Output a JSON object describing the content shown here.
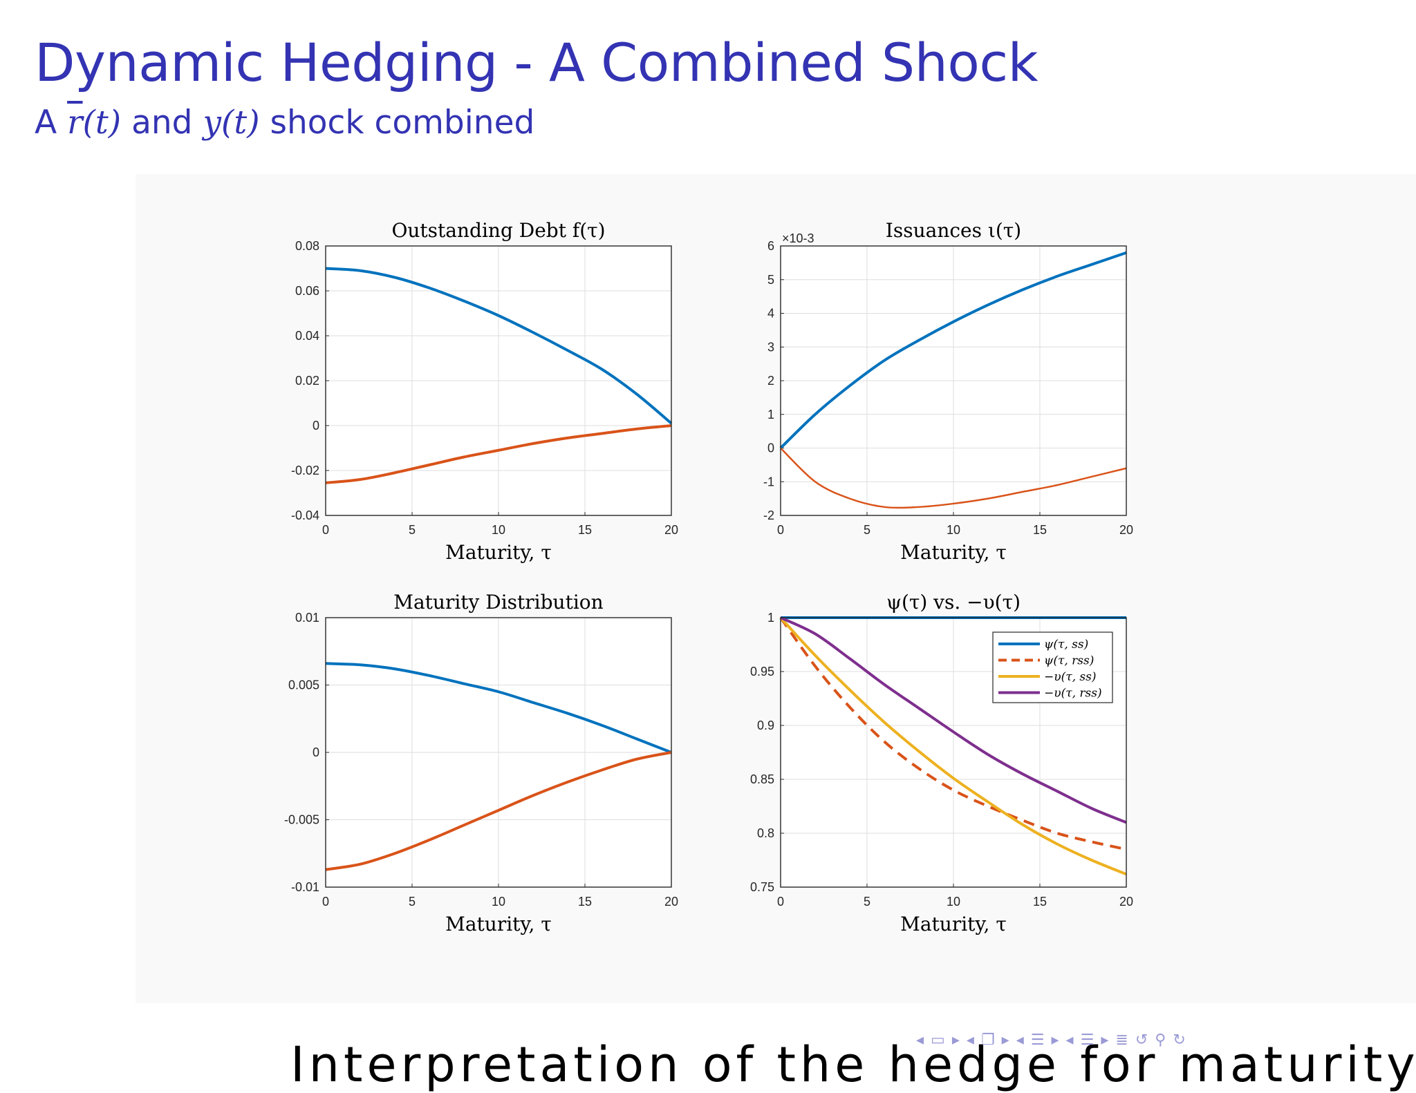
{
  "slide": {
    "title": "Dynamic Hedging - A Combined Shock",
    "subtitle_prefix": "A ",
    "subtitle_r": "r",
    "subtitle_r_arg": "(t)",
    "subtitle_mid": " and ",
    "subtitle_y": "y(t)",
    "subtitle_suffix": " shock combined",
    "bottom_text": "Interpretation of the hedge  for maturity",
    "colors": {
      "title": "#3333b3",
      "blue": "#0072BD",
      "orange": "#D95319",
      "yellow": "#EDB120",
      "purple": "#7E2F8E"
    }
  },
  "navigation": {
    "icons": [
      "nav-left-arrow",
      "nav-frame-icon",
      "nav-right-arrow",
      "nav-left-arrow",
      "nav-subsection-icon",
      "nav-right-arrow",
      "nav-left-arrow",
      "nav-section-icon",
      "nav-right-arrow",
      "nav-left-arrow",
      "nav-section-icon",
      "nav-right-arrow",
      "nav-align-icon",
      "nav-back-icon",
      "nav-search-icon",
      "nav-forward-icon"
    ]
  },
  "chart_data": [
    {
      "type": "line",
      "title": "Outstanding Debt f(τ)",
      "xlabel": "Maturity, τ",
      "ylabel": "",
      "xlim": [
        0,
        20
      ],
      "ylim": [
        -0.04,
        0.08
      ],
      "xticks": [
        "0",
        "5",
        "10",
        "15",
        "20"
      ],
      "yticks": [
        "-0.04",
        "-0.02",
        "0",
        "0.02",
        "0.04",
        "0.06",
        "0.08"
      ],
      "grid": true,
      "x": [
        0,
        2,
        4,
        6,
        8,
        10,
        12,
        14,
        16,
        18,
        20
      ],
      "series": [
        {
          "color": "#0072BD",
          "width": 4,
          "dash": "",
          "values": [
            0.07,
            0.069,
            0.066,
            0.0613,
            0.0555,
            0.049,
            0.0415,
            0.0335,
            0.025,
            0.014,
            0.001
          ]
        },
        {
          "color": "#D95319",
          "width": 4,
          "dash": "",
          "values": [
            -0.0255,
            -0.024,
            -0.021,
            -0.0175,
            -0.014,
            -0.011,
            -0.008,
            -0.0055,
            -0.0035,
            -0.0015,
            0.0
          ]
        }
      ]
    },
    {
      "type": "line",
      "title": "Issuances ι(τ)",
      "xlabel": "Maturity, τ",
      "ylabel": "",
      "xlim": [
        0,
        20
      ],
      "ylim": [
        -2,
        6
      ],
      "xticks": [
        "0",
        "5",
        "10",
        "15",
        "20"
      ],
      "yticks": [
        "-2",
        "-1",
        "0",
        "1",
        "2",
        "3",
        "4",
        "5",
        "6"
      ],
      "exponent": "×10-3",
      "grid": true,
      "x": [
        0,
        2,
        4,
        6,
        8,
        10,
        12,
        14,
        16,
        18,
        20
      ],
      "series": [
        {
          "color": "#0072BD",
          "width": 4,
          "dash": "",
          "values": [
            0.0,
            1.0,
            1.85,
            2.6,
            3.2,
            3.75,
            4.25,
            4.7,
            5.1,
            5.45,
            5.8
          ]
        },
        {
          "color": "#D95319",
          "width": 2.5,
          "dash": "",
          "values": [
            0.0,
            -1.0,
            -1.5,
            -1.75,
            -1.75,
            -1.65,
            -1.5,
            -1.3,
            -1.1,
            -0.85,
            -0.6
          ]
        }
      ]
    },
    {
      "type": "line",
      "title": "Maturity Distribution",
      "xlabel": "Maturity, τ",
      "ylabel": "",
      "xlim": [
        0,
        20
      ],
      "ylim": [
        -0.01,
        0.01
      ],
      "xticks": [
        "0",
        "5",
        "10",
        "15",
        "20"
      ],
      "yticks": [
        "-0.01",
        "-0.005",
        "0",
        "0.005",
        "0.01"
      ],
      "grid": true,
      "x": [
        0,
        2,
        4,
        6,
        8,
        10,
        12,
        14,
        16,
        18,
        20
      ],
      "series": [
        {
          "color": "#0072BD",
          "width": 4,
          "dash": "",
          "values": [
            0.0066,
            0.0065,
            0.0062,
            0.0057,
            0.0051,
            0.0045,
            0.0037,
            0.0029,
            0.002,
            0.001,
            0.0
          ]
        },
        {
          "color": "#D95319",
          "width": 4,
          "dash": "",
          "values": [
            -0.0087,
            -0.0083,
            -0.0075,
            -0.0065,
            -0.0054,
            -0.0043,
            -0.0032,
            -0.0022,
            -0.0013,
            -0.0005,
            0.0
          ]
        }
      ]
    },
    {
      "type": "line",
      "title": "ψ(τ) vs. −υ(τ)",
      "xlabel": "Maturity, τ",
      "ylabel": "",
      "xlim": [
        0,
        20
      ],
      "ylim": [
        0.75,
        1
      ],
      "xticks": [
        "0",
        "5",
        "10",
        "15",
        "20"
      ],
      "yticks": [
        "0.75",
        "0.8",
        "0.85",
        "0.9",
        "0.95",
        "1"
      ],
      "grid": true,
      "legend_position": "top-right",
      "x": [
        0,
        2,
        4,
        6,
        8,
        10,
        12,
        14,
        16,
        18,
        20
      ],
      "series": [
        {
          "name": "ψ(τ, ss)",
          "color": "#0072BD",
          "width": 4,
          "dash": "",
          "values": [
            1,
            1,
            1,
            1,
            1,
            1,
            1,
            1,
            1,
            1,
            1
          ]
        },
        {
          "name": "ψ(τ, rss)",
          "color": "#D95319",
          "width": 4,
          "dash": "16 10",
          "values": [
            1.0,
            0.955,
            0.917,
            0.885,
            0.86,
            0.84,
            0.825,
            0.812,
            0.8,
            0.792,
            0.785
          ]
        },
        {
          "name": "−υ(τ, ss)",
          "color": "#EDB120",
          "width": 4,
          "dash": "",
          "values": [
            1.0,
            0.965,
            0.933,
            0.903,
            0.876,
            0.851,
            0.829,
            0.808,
            0.79,
            0.775,
            0.762
          ]
        },
        {
          "name": "−υ(τ, rss)",
          "color": "#7E2F8E",
          "width": 4,
          "dash": "",
          "values": [
            1.0,
            0.985,
            0.962,
            0.938,
            0.916,
            0.894,
            0.873,
            0.855,
            0.839,
            0.823,
            0.81
          ]
        }
      ]
    }
  ]
}
